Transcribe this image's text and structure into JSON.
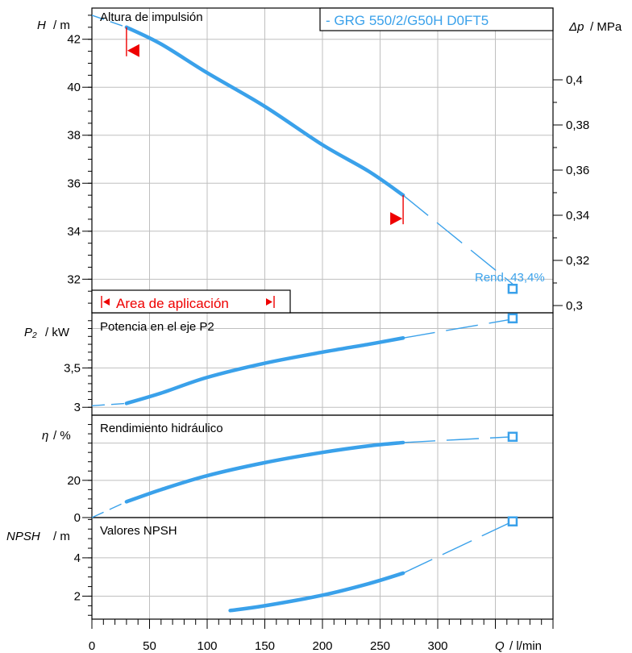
{
  "colors": {
    "curve": "#3aa1ea",
    "marker": "#ee0000",
    "grid": "#bfbfbf",
    "frame": "#000000"
  },
  "legend": {
    "label": "- GRG 550/2/G50H D0FT5"
  },
  "x_axis": {
    "symbol": "Q",
    "unit": "/ l/min",
    "ticks": [
      0,
      50,
      100,
      150,
      200,
      250,
      300
    ],
    "range": [
      0,
      400
    ]
  },
  "panels": {
    "head": {
      "title": "Altura de impulsión",
      "axis_symbol": "H",
      "axis_unit": "/ m",
      "ticks": [
        32,
        34,
        36,
        38,
        40,
        42
      ],
      "range": [
        30.6,
        43.3
      ],
      "right_axis": {
        "symbol": "Δp",
        "unit": "/ MPa",
        "ticks": [
          "0,3",
          "0,32",
          "0,34",
          "0,36",
          "0,38",
          "0,4"
        ]
      },
      "efficiency_label": "Rend.  43,4%",
      "area_label": "Area de aplicación",
      "application_range": [
        30,
        270
      ]
    },
    "power": {
      "title": "Potencia en el eje P2",
      "axis_symbol": "P₂",
      "axis_unit": "/ kW",
      "ticks": [
        "3",
        "3,5"
      ]
    },
    "efficiency": {
      "title": "Rendimiento hidráulico",
      "axis_symbol": "η",
      "axis_unit": "/ %",
      "ticks": [
        0,
        20
      ]
    },
    "npsh": {
      "title": "Valores NPSH",
      "axis_symbol": "NPSH",
      "axis_unit": "/ m",
      "ticks": [
        2,
        4
      ]
    }
  },
  "chart_data": [
    {
      "type": "line",
      "title": "Altura de impulsión",
      "xlabel": "Q / l/min",
      "ylabel": "H / m",
      "ylim": [
        30.6,
        43.3
      ],
      "xlim": [
        0,
        400
      ],
      "series": [
        {
          "name": "- GRG 550/2/G50H D0FT5",
          "solid_x": [
            30,
            60,
            100,
            150,
            200,
            240,
            270
          ],
          "solid_y": [
            42.5,
            41.8,
            40.6,
            39.2,
            37.6,
            36.5,
            35.5
          ],
          "dashed_x": [
            0,
            30
          ],
          "dashed_y": [
            43.0,
            42.5
          ],
          "dashed_after_x": [
            270,
            365
          ],
          "dashed_after_y": [
            35.5,
            31.8
          ]
        }
      ],
      "markers": [
        {
          "x": 365,
          "y": 31.6,
          "label": "Rend.  43,4%"
        }
      ]
    },
    {
      "type": "line",
      "title": "Potencia en el eje P2",
      "xlabel": "Q / l/min",
      "ylabel": "P₂ / kW",
      "ylim": [
        2.9,
        4.2
      ],
      "xlim": [
        0,
        400
      ],
      "series": [
        {
          "name": "- GRG 550/2/G50H D0FT5",
          "solid_x": [
            30,
            60,
            100,
            150,
            200,
            240,
            270
          ],
          "solid_y": [
            3.05,
            3.18,
            3.38,
            3.56,
            3.7,
            3.8,
            3.88
          ],
          "dashed_x": [
            0,
            30
          ],
          "dashed_y": [
            3.02,
            3.05
          ],
          "dashed_after_x": [
            270,
            365
          ],
          "dashed_after_y": [
            3.88,
            4.12
          ]
        }
      ],
      "markers": [
        {
          "x": 365,
          "y": 4.13
        }
      ]
    },
    {
      "type": "line",
      "title": "Rendimiento hidráulico",
      "xlabel": "Q / l/min",
      "ylabel": "η / %",
      "ylim": [
        0,
        55
      ],
      "xlim": [
        0,
        400
      ],
      "series": [
        {
          "name": "- GRG 550/2/G50H D0FT5",
          "solid_x": [
            30,
            60,
            100,
            150,
            200,
            240,
            270
          ],
          "solid_y": [
            8.5,
            15,
            22.5,
            29.5,
            35,
            38.5,
            40.3
          ],
          "dashed_x": [
            0,
            30
          ],
          "dashed_y": [
            0,
            8.5
          ],
          "dashed_after_x": [
            270,
            365
          ],
          "dashed_after_y": [
            40.3,
            43.4
          ]
        }
      ],
      "markers": [
        {
          "x": 365,
          "y": 43.4
        }
      ]
    },
    {
      "type": "line",
      "title": "Valores NPSH",
      "xlabel": "Q / l/min",
      "ylabel": "NPSH / m",
      "ylim": [
        0.8,
        6.1
      ],
      "xlim": [
        0,
        400
      ],
      "series": [
        {
          "name": "- GRG 550/2/G50H D0FT5",
          "solid_x": [
            120,
            150,
            200,
            240,
            270
          ],
          "solid_y": [
            1.25,
            1.5,
            2.05,
            2.65,
            3.2
          ],
          "dashed_x": [],
          "dashed_y": [],
          "dashed_after_x": [
            270,
            365
          ],
          "dashed_after_y": [
            3.2,
            5.9
          ]
        }
      ],
      "markers": [
        {
          "x": 365,
          "y": 5.9
        }
      ]
    }
  ]
}
